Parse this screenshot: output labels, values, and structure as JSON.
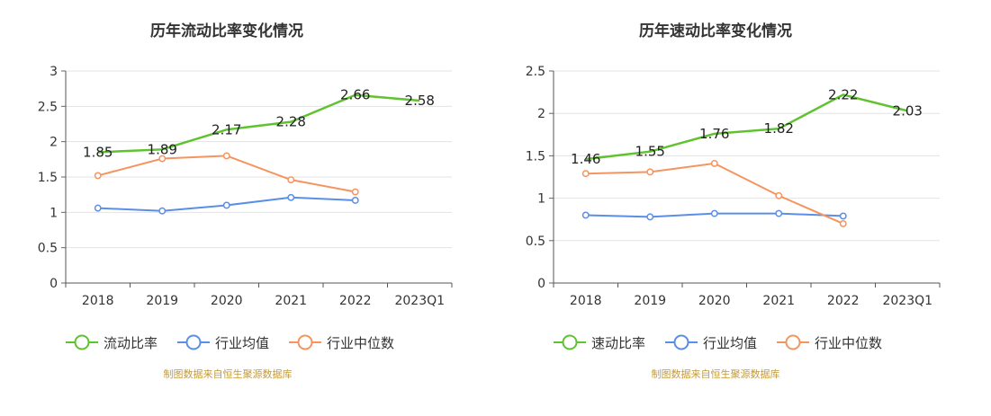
{
  "chart_data": [
    {
      "type": "line",
      "title": "历年流动比率变化情况",
      "categories": [
        "2018",
        "2019",
        "2020",
        "2021",
        "2022",
        "2023Q1"
      ],
      "ylim": [
        0,
        3
      ],
      "yticks": [
        "0",
        "0.5",
        "1",
        "1.5",
        "2",
        "2.5",
        "3"
      ],
      "grid": true,
      "legend_position": "bottom",
      "source": "制图数据来自恒生聚源数据库",
      "series": [
        {
          "name": "流动比率",
          "color": "#5fc22f",
          "labeled": true,
          "values": [
            1.85,
            1.89,
            2.17,
            2.28,
            2.66,
            2.58
          ],
          "labels": [
            "1.85",
            "1.89",
            "2.17",
            "2.28",
            "2.66",
            "2.58"
          ]
        },
        {
          "name": "行业均值",
          "color": "#5b8ee6",
          "labeled": false,
          "values": [
            1.06,
            1.02,
            1.1,
            1.21,
            1.17,
            null
          ]
        },
        {
          "name": "行业中位数",
          "color": "#f5945f",
          "labeled": false,
          "values": [
            1.52,
            1.76,
            1.8,
            1.46,
            1.29,
            null
          ]
        }
      ]
    },
    {
      "type": "line",
      "title": "历年速动比率变化情况",
      "categories": [
        "2018",
        "2019",
        "2020",
        "2021",
        "2022",
        "2023Q1"
      ],
      "ylim": [
        0,
        2.5
      ],
      "yticks": [
        "0",
        "0.5",
        "1",
        "1.5",
        "2",
        "2.5"
      ],
      "grid": true,
      "legend_position": "bottom",
      "source": "制图数据来自恒生聚源数据库",
      "series": [
        {
          "name": "速动比率",
          "color": "#5fc22f",
          "labeled": true,
          "values": [
            1.46,
            1.55,
            1.76,
            1.82,
            2.22,
            2.03
          ],
          "labels": [
            "1.46",
            "1.55",
            "1.76",
            "1.82",
            "2.22",
            "2.03"
          ]
        },
        {
          "name": "行业均值",
          "color": "#5b8ee6",
          "labeled": false,
          "values": [
            0.8,
            0.78,
            0.82,
            0.82,
            0.79,
            null
          ]
        },
        {
          "name": "行业中位数",
          "color": "#f5945f",
          "labeled": false,
          "values": [
            1.29,
            1.31,
            1.41,
            1.03,
            0.7,
            null
          ]
        }
      ]
    }
  ]
}
